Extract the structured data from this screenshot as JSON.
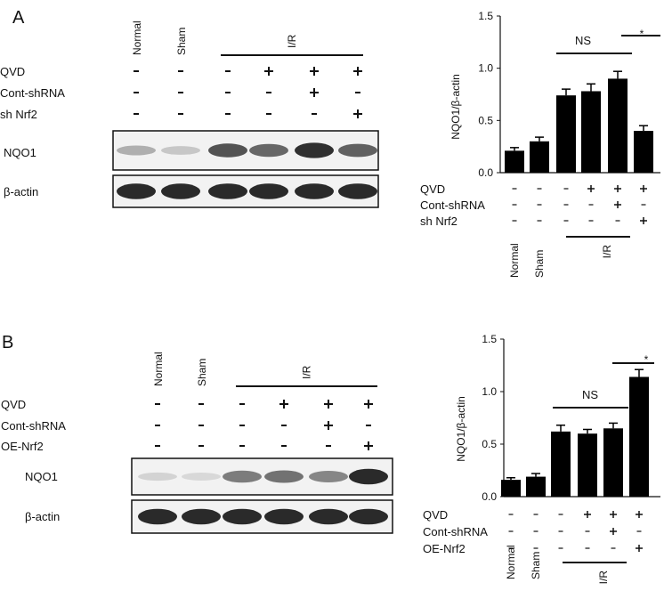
{
  "chart_data": [
    {
      "panel_label": "A",
      "blot": {
        "column_headers": [
          "Normal",
          "Sham"
        ],
        "group_label": "I/R",
        "treatment_rows": [
          {
            "label": "QVD",
            "signs": [
              "-",
              "-",
              "-",
              "+",
              "+",
              "+"
            ]
          },
          {
            "label": "Cont-shRNA",
            "signs": [
              "-",
              "-",
              "-",
              "-",
              "+",
              "-"
            ]
          },
          {
            "label": "sh Nrf2",
            "signs": [
              "-",
              "-",
              "-",
              "-",
              "-",
              "+"
            ]
          }
        ],
        "bands": [
          {
            "label": "NQO1",
            "intensities": [
              0.3,
              0.18,
              0.75,
              0.65,
              0.92,
              0.68
            ]
          },
          {
            "label": "β-actin",
            "intensities": [
              0.95,
              0.95,
              0.95,
              0.95,
              0.95,
              0.95
            ]
          }
        ]
      },
      "type": "bar",
      "ylabel": "NQO1/β-actin",
      "ylim": [
        0,
        1.5
      ],
      "yticks": [
        "0.0",
        "0.5",
        "1.0",
        "1.5"
      ],
      "values": [
        0.21,
        0.3,
        0.74,
        0.78,
        0.9,
        0.4
      ],
      "errors": [
        0.03,
        0.04,
        0.06,
        0.07,
        0.07,
        0.05
      ],
      "treatment_rows": [
        {
          "label": "QVD",
          "signs": [
            "-",
            "-",
            "-",
            "+",
            "+",
            "+"
          ]
        },
        {
          "label": "Cont-shRNA",
          "signs": [
            "-",
            "-",
            "-",
            "-",
            "+",
            "-"
          ]
        },
        {
          "label": "sh Nrf2",
          "signs": [
            "-",
            "-",
            "-",
            "-",
            "-",
            "+"
          ]
        }
      ],
      "group_labels": [
        "Normal",
        "Sham"
      ],
      "ir_label": "I/R",
      "annotations": [
        {
          "text": "NS",
          "from": 2,
          "to": 4
        },
        {
          "text": "*",
          "from": 4,
          "to": 5
        }
      ]
    },
    {
      "panel_label": "B",
      "blot": {
        "column_headers": [
          "Normal",
          "Sham"
        ],
        "group_label": "I/R",
        "treatment_rows": [
          {
            "label": "QVD",
            "signs": [
              "-",
              "-",
              "-",
              "+",
              "+",
              "+"
            ]
          },
          {
            "label": "Cont-shRNA",
            "signs": [
              "-",
              "-",
              "-",
              "-",
              "+",
              "-"
            ]
          },
          {
            "label": "OE-Nrf2",
            "signs": [
              "-",
              "-",
              "-",
              "-",
              "-",
              "+"
            ]
          }
        ],
        "bands": [
          {
            "label": "NQO1",
            "intensities": [
              0.12,
              0.1,
              0.55,
              0.6,
              0.5,
              0.95
            ]
          },
          {
            "label": "β-actin",
            "intensities": [
              0.95,
              0.95,
              0.95,
              0.95,
              0.95,
              0.95
            ]
          }
        ]
      },
      "type": "bar",
      "ylabel": "NQO1/β-actin",
      "ylim": [
        0,
        1.5
      ],
      "yticks": [
        "0.0",
        "0.5",
        "1.0",
        "1.5"
      ],
      "values": [
        0.16,
        0.19,
        0.62,
        0.6,
        0.65,
        1.14
      ],
      "errors": [
        0.02,
        0.03,
        0.06,
        0.04,
        0.05,
        0.07
      ],
      "treatment_rows": [
        {
          "label": "QVD",
          "signs": [
            "-",
            "-",
            "-",
            "+",
            "+",
            "+"
          ]
        },
        {
          "label": "Cont-shRNA",
          "signs": [
            "-",
            "-",
            "-",
            "-",
            "+",
            "-"
          ]
        },
        {
          "label": "OE-Nrf2",
          "signs": [
            "-",
            "-",
            "-",
            "-",
            "-",
            "+"
          ]
        }
      ],
      "group_labels": [
        "Normal",
        "Sham"
      ],
      "ir_label": "I/R",
      "annotations": [
        {
          "text": "NS",
          "from": 2,
          "to": 4
        },
        {
          "text": "*",
          "from": 4,
          "to": 5
        }
      ]
    }
  ]
}
